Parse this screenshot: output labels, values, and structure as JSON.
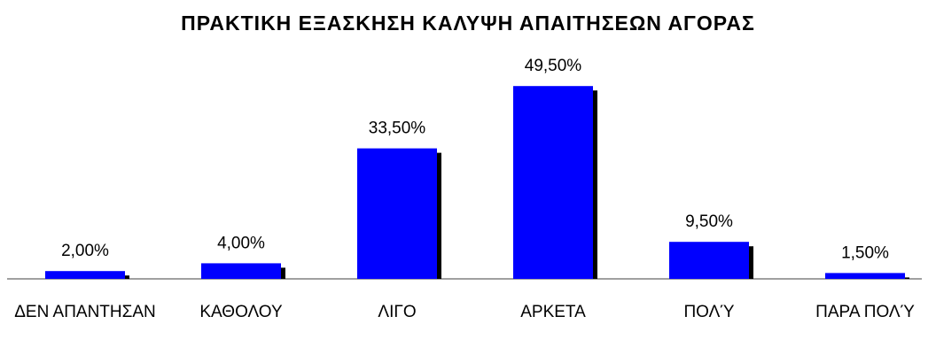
{
  "chart_data": {
    "type": "bar",
    "title": "ΠΡΑΚΤΙΚΗ ΕΞΑΣΚΗΣΗ ΚΑΛΥΨΗ ΑΠΑΙΤΗΣΕΩΝ ΑΓΟΡΑΣ",
    "categories": [
      "ΔΕΝ ΑΠΑΝΤΗΣΑΝ",
      "ΚΑΘΟΛΟΥ",
      "ΛΙΓΟ",
      "ΑΡΚΕΤΑ",
      "ΠΟΛΎ",
      "ΠΑΡΑ ΠΟΛΎ"
    ],
    "values": [
      2,
      4,
      33.5,
      49.5,
      9.5,
      1.5
    ],
    "value_labels": [
      "2,00%",
      "4,00%",
      "33,50%",
      "49,50%",
      "9,50%",
      "1,50%"
    ],
    "color": "#0000ff"
  }
}
